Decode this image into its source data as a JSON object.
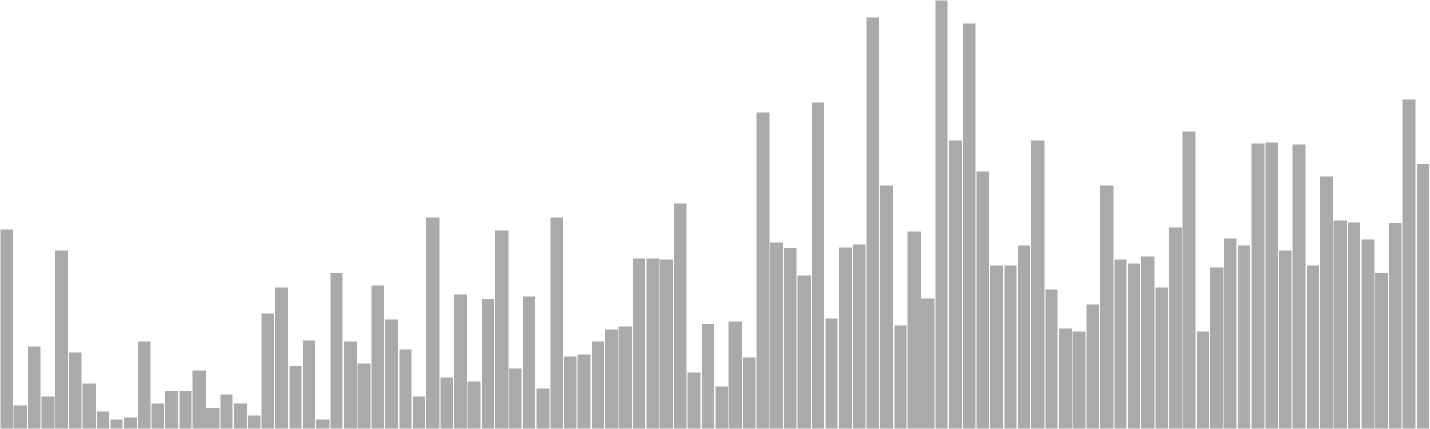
{
  "chart_data": {
    "type": "bar",
    "title": "",
    "xlabel": "",
    "ylabel": "",
    "grid": false,
    "legend": "none",
    "ylim": [
      0,
      480
    ],
    "bar_color": "#aaaaaa",
    "values": [
      224,
      27,
      93,
      37,
      200,
      86,
      51,
      20,
      11,
      13,
      98,
      29,
      43,
      43,
      66,
      24,
      39,
      29,
      16,
      130,
      159,
      71,
      100,
      11,
      175,
      98,
      74,
      161,
      123,
      89,
      37,
      237,
      58,
      151,
      54,
      146,
      223,
      68,
      149,
      46,
      237,
      82,
      84,
      98,
      112,
      115,
      191,
      191,
      190,
      253,
      64,
      118,
      48,
      121,
      80,
      355,
      209,
      203,
      172,
      366,
      124,
      204,
      207,
      461,
      273,
      116,
      221,
      147,
      480,
      323,
      454,
      289,
      183,
      183,
      206,
      323,
      157,
      113,
      110,
      140,
      273,
      190,
      186,
      194,
      159,
      226,
      333,
      110,
      181,
      214,
      206,
      320,
      321,
      200,
      319,
      183,
      283,
      234,
      232,
      213,
      175,
      231,
      369,
      297
    ]
  }
}
